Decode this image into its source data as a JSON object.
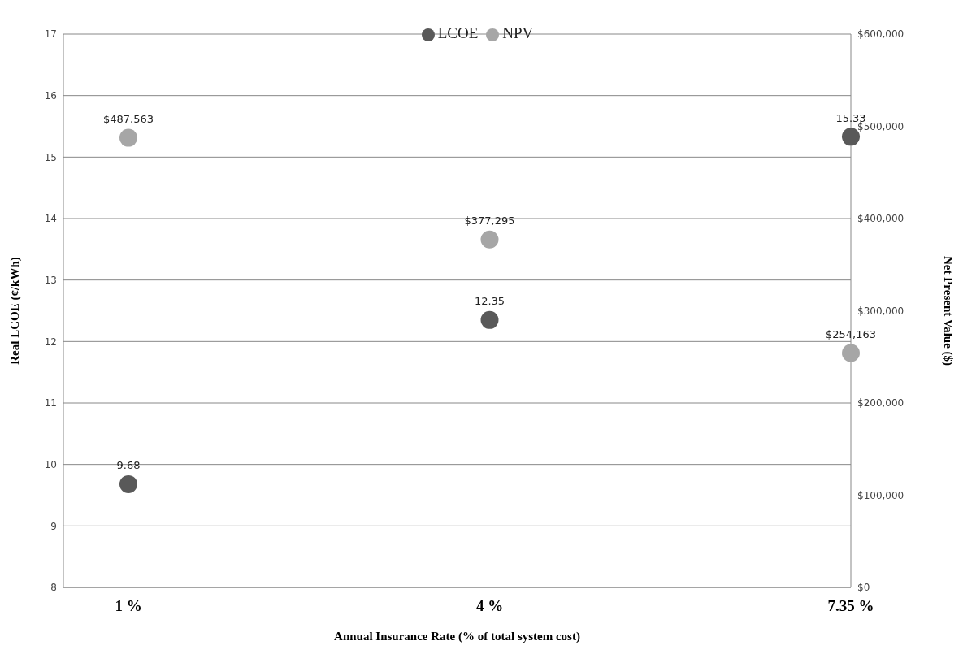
{
  "chart_data": {
    "type": "scatter",
    "xlabel": "Annual Insurance Rate (% of total system cost)",
    "ylabel": "Real LCOE  (¢/kWh)",
    "y2label": "Net Present Value ($)",
    "categories": [
      "1 %",
      "4 %",
      "7.35 %"
    ],
    "series": [
      {
        "name": "LCOE",
        "color": "#595959",
        "values": [
          9.68,
          12.35,
          15.33
        ],
        "value_labels": [
          "9.68",
          "12.35",
          "15.33"
        ]
      },
      {
        "name": "NPV",
        "color": "#a6a6a6",
        "axis": "y2",
        "values": [
          487563,
          377295,
          254163
        ],
        "value_labels": [
          "$487,563",
          "$377,295",
          "$254,163"
        ]
      }
    ],
    "ylim": [
      8,
      17
    ],
    "yticks": [
      8,
      9,
      10,
      11,
      12,
      13,
      14,
      15,
      16,
      17
    ],
    "y2lim": [
      0,
      600000
    ],
    "y2ticks": [
      {
        "value": 0,
        "label": "$0"
      },
      {
        "value": 100000,
        "label": "$100,000"
      },
      {
        "value": 200000,
        "label": "$200,000"
      },
      {
        "value": 300000,
        "label": "$300,000"
      },
      {
        "value": 400000,
        "label": "$400,000"
      },
      {
        "value": 500000,
        "label": "$500,000"
      },
      {
        "value": 600000,
        "label": "$600,000"
      }
    ],
    "grid": "y",
    "legend": "top",
    "marker": "circle"
  }
}
